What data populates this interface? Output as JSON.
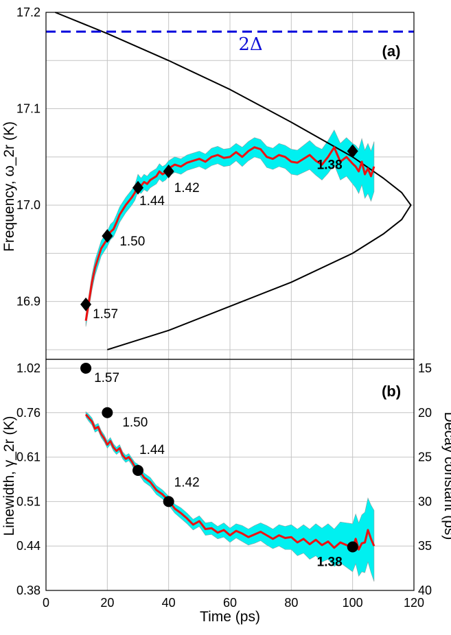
{
  "chart_data": [
    {
      "type": "line",
      "panel_label": "(a)",
      "ylabel": "Frequency, ω_2r (K)",
      "ylim": [
        16.84,
        17.2
      ],
      "y_ticks": [
        "16.9",
        "17.0",
        "17.1",
        "17.2"
      ],
      "y_tick_values": [
        16.9,
        17.0,
        17.1,
        17.2
      ],
      "xlim": [
        0,
        120
      ],
      "grid": true,
      "reference_line": {
        "label": "2Δ",
        "y": 17.18,
        "color": "#0000dd",
        "style": "dashed"
      },
      "boundary_curve": {
        "color": "#000000",
        "points": [
          [
            3,
            17.2
          ],
          [
            20,
            17.178
          ],
          [
            40,
            17.15
          ],
          [
            60,
            17.12
          ],
          [
            80,
            17.086
          ],
          [
            100,
            17.05
          ],
          [
            110,
            17.028
          ],
          [
            116,
            17.013
          ],
          [
            119,
            17.0
          ],
          [
            116,
            16.985
          ],
          [
            110,
            16.97
          ],
          [
            100,
            16.95
          ],
          [
            80,
            16.92
          ],
          [
            60,
            16.895
          ],
          [
            40,
            16.87
          ],
          [
            20,
            16.85
          ]
        ]
      },
      "series": [
        {
          "color": "#ee1111",
          "band_color": "#00f0f0",
          "x": [
            13,
            14,
            15,
            16,
            17,
            18,
            19,
            20,
            21,
            22,
            23,
            24,
            25,
            26,
            27,
            28,
            29,
            30,
            31,
            32,
            33,
            34,
            35,
            36,
            37,
            38,
            39,
            40,
            42,
            44,
            46,
            48,
            50,
            52,
            54,
            56,
            58,
            60,
            62,
            64,
            66,
            68,
            70,
            72,
            74,
            76,
            78,
            80,
            82,
            84,
            86,
            88,
            90,
            92,
            94,
            96,
            98,
            100,
            101,
            102,
            103,
            104,
            105,
            106,
            107
          ],
          "y": [
            16.88,
            16.9,
            16.92,
            16.935,
            16.945,
            16.955,
            16.96,
            16.965,
            16.972,
            16.975,
            16.982,
            16.99,
            16.995,
            17.0,
            17.004,
            17.008,
            17.013,
            17.023,
            17.02,
            17.024,
            17.022,
            17.026,
            17.028,
            17.03,
            17.035,
            17.032,
            17.034,
            17.038,
            17.042,
            17.04,
            17.044,
            17.046,
            17.048,
            17.045,
            17.05,
            17.052,
            17.049,
            17.05,
            17.055,
            17.05,
            17.056,
            17.06,
            17.058,
            17.05,
            17.048,
            17.052,
            17.05,
            17.045,
            17.044,
            17.048,
            17.052,
            17.046,
            17.042,
            17.05,
            17.06,
            17.045,
            17.05,
            17.043,
            17.04,
            17.035,
            17.045,
            17.032,
            17.038,
            17.03,
            17.04
          ],
          "band_halfwidth": [
            0.006,
            0.007,
            0.008,
            0.008,
            0.008,
            0.008,
            0.008,
            0.008,
            0.008,
            0.008,
            0.008,
            0.008,
            0.008,
            0.008,
            0.008,
            0.008,
            0.008,
            0.009,
            0.008,
            0.008,
            0.008,
            0.008,
            0.008,
            0.008,
            0.008,
            0.008,
            0.008,
            0.008,
            0.008,
            0.008,
            0.008,
            0.008,
            0.008,
            0.008,
            0.009,
            0.009,
            0.009,
            0.009,
            0.009,
            0.01,
            0.01,
            0.01,
            0.01,
            0.011,
            0.011,
            0.012,
            0.012,
            0.013,
            0.013,
            0.014,
            0.015,
            0.015,
            0.016,
            0.017,
            0.018,
            0.019,
            0.02,
            0.021,
            0.022,
            0.023,
            0.024,
            0.025,
            0.026,
            0.026,
            0.026
          ]
        }
      ],
      "markers": [
        {
          "x": 13,
          "y": 16.897,
          "label": "1.57",
          "bold": false
        },
        {
          "x": 20,
          "y": 16.968,
          "label": "1.50",
          "bold": false
        },
        {
          "x": 30,
          "y": 17.018,
          "label": "1.44",
          "bold": false
        },
        {
          "x": 40,
          "y": 17.035,
          "label": "1.42",
          "bold": false
        },
        {
          "x": 100,
          "y": 17.056,
          "label": "1.38",
          "bold": true
        }
      ]
    },
    {
      "type": "line",
      "panel_label": "(b)",
      "xlabel": "Time (ps)",
      "ylabel": "Linewidth, γ_2r (K)",
      "y2label": "Decay constant (ps)",
      "xlim": [
        0,
        120
      ],
      "x_ticks": [
        "0",
        "20",
        "40",
        "60",
        "80",
        "100",
        "120"
      ],
      "x_tick_values": [
        0,
        20,
        40,
        60,
        80,
        100,
        120
      ],
      "ylim_decay_ps": [
        14,
        40
      ],
      "y_ticks": [
        "1.02",
        "0.76",
        "0.61",
        "0.51",
        "0.44",
        "0.38"
      ],
      "y_tick_positions_decay_ps": [
        15,
        20,
        25,
        30,
        35,
        40
      ],
      "y2_ticks": [
        "15",
        "20",
        "25",
        "30",
        "35",
        "40"
      ],
      "y2_tick_values": [
        15,
        20,
        25,
        30,
        35,
        40
      ],
      "grid": true,
      "series": [
        {
          "color": "#ee1111",
          "band_color": "#00f0f0",
          "x": [
            13,
            14,
            15,
            16,
            17,
            18,
            19,
            20,
            21,
            22,
            23,
            24,
            25,
            26,
            27,
            28,
            29,
            30,
            32,
            34,
            36,
            38,
            40,
            42,
            44,
            46,
            48,
            50,
            52,
            54,
            56,
            58,
            60,
            62,
            64,
            66,
            68,
            70,
            72,
            74,
            76,
            78,
            80,
            82,
            84,
            86,
            88,
            90,
            92,
            94,
            96,
            98,
            100,
            101,
            102,
            103,
            104,
            105,
            106,
            107
          ],
          "decay_ps": [
            20.2,
            20.6,
            21.0,
            21.8,
            21.6,
            22.4,
            22.9,
            23.6,
            23.2,
            23.9,
            24.3,
            24.0,
            24.8,
            25.2,
            25.0,
            25.5,
            26.1,
            26.3,
            27.3,
            27.8,
            28.7,
            29.2,
            29.9,
            30.8,
            31.3,
            31.9,
            32.6,
            32.2,
            33.1,
            33.0,
            33.5,
            33.2,
            33.8,
            33.3,
            33.6,
            34.0,
            33.7,
            33.4,
            33.8,
            34.2,
            33.8,
            34.1,
            34.0,
            34.6,
            34.2,
            34.8,
            34.3,
            34.9,
            34.5,
            35.2,
            34.6,
            34.9,
            35.2,
            34.2,
            35.4,
            34.7,
            34.6,
            33.2,
            34.2,
            35.0
          ],
          "band_halfwidth_ps": [
            0.3,
            0.4,
            0.4,
            0.4,
            0.4,
            0.4,
            0.4,
            0.4,
            0.4,
            0.4,
            0.4,
            0.4,
            0.4,
            0.4,
            0.4,
            0.4,
            0.5,
            0.5,
            0.5,
            0.5,
            0.5,
            0.5,
            0.5,
            0.5,
            0.6,
            0.6,
            0.6,
            0.6,
            0.7,
            0.7,
            0.7,
            0.8,
            0.8,
            0.8,
            0.9,
            0.9,
            1.0,
            1.0,
            1.1,
            1.1,
            1.2,
            1.3,
            1.4,
            1.5,
            1.6,
            1.7,
            1.8,
            1.9,
            2.0,
            2.1,
            2.3,
            2.5,
            2.7,
            2.8,
            3.0,
            3.2,
            3.4,
            3.6,
            3.8,
            4.0
          ]
        }
      ],
      "markers": [
        {
          "x": 13,
          "decay_ps": 15,
          "label": "1.57",
          "bold": false
        },
        {
          "x": 20,
          "decay_ps": 20,
          "label": "1.50",
          "bold": false
        },
        {
          "x": 30,
          "decay_ps": 26.5,
          "label": "1.44",
          "bold": false
        },
        {
          "x": 40,
          "decay_ps": 30,
          "label": "1.42",
          "bold": false
        },
        {
          "x": 100,
          "decay_ps": 35.1,
          "label": "1.38",
          "bold": true
        }
      ]
    }
  ]
}
